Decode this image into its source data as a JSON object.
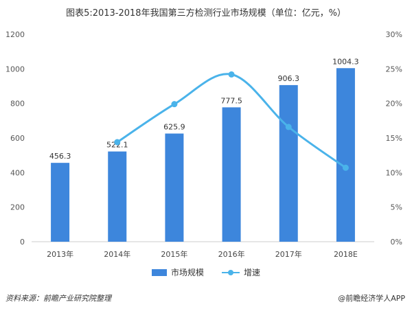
{
  "title": "图表5:2013-2018年我国第三方检测行业市场规模（单位：亿元，%）",
  "source": "资料来源：前瞻产业研究院整理",
  "credit": "@前瞻经济学人APP",
  "colors": {
    "bar": "#3d86dc",
    "line": "#4ab3ea",
    "axis": "#cccccc"
  },
  "chart_data": {
    "type": "bar",
    "categories": [
      "2013年",
      "2014年",
      "2015年",
      "2016年",
      "2017年",
      "2018E"
    ],
    "series": [
      {
        "name": "市场规模",
        "type": "bar",
        "axis": "left",
        "values": [
          456.3,
          522.1,
          625.9,
          777.5,
          906.3,
          1004.3
        ],
        "labels": [
          "456.3",
          "522.1",
          "625.9",
          "777.5",
          "906.3",
          "1004.3"
        ]
      },
      {
        "name": "增速",
        "type": "line",
        "axis": "right",
        "smooth": true,
        "values": [
          null,
          14.4,
          19.9,
          24.2,
          16.6,
          10.7
        ]
      }
    ],
    "y_left": {
      "min": 0,
      "max": 1200,
      "ticks": [
        "0",
        "200",
        "400",
        "600",
        "800",
        "1000",
        "1200"
      ]
    },
    "y_right": {
      "min": 0,
      "max": 30,
      "ticks": [
        "0%",
        "5%",
        "10%",
        "15%",
        "20%",
        "25%",
        "30%"
      ]
    },
    "legend": "bottom"
  }
}
